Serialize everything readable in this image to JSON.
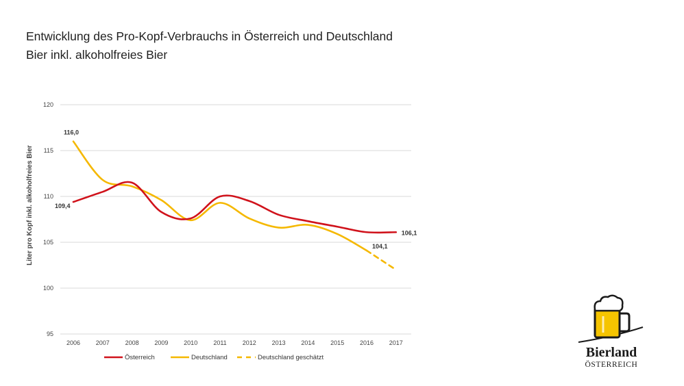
{
  "header": {
    "title": "Entwicklung des Pro-Kopf-Verbrauchs in Österreich und Deutschland",
    "subtitle": "Bier inkl. alkoholfreies Bier"
  },
  "logo": {
    "name": "Bierland",
    "sub": "ÖSTERREICH"
  },
  "colors": {
    "austria": "#d0121b",
    "germany": "#f5b800",
    "grid": "#d9d9d9"
  },
  "chart_data": {
    "type": "line",
    "title": "",
    "xlabel": "",
    "ylabel": "Liter pro Kopf inkl. alkoholfreies Bier",
    "ylim": [
      95,
      120
    ],
    "yticks": [
      95,
      100,
      105,
      110,
      115,
      120
    ],
    "grid": true,
    "legend_position": "bottom",
    "x": [
      "2006",
      "2007",
      "2008",
      "2009",
      "2010",
      "2011",
      "2012",
      "2013",
      "2014",
      "2015",
      "2016",
      "2017"
    ],
    "series": [
      {
        "name": "Österreich",
        "style": "solid",
        "values": [
          109.4,
          110.5,
          111.5,
          108.3,
          107.6,
          110.0,
          109.5,
          108.0,
          107.3,
          106.7,
          106.1,
          106.1
        ]
      },
      {
        "name": "Deutschland",
        "style": "solid",
        "values": [
          116.0,
          111.8,
          111.1,
          109.6,
          107.4,
          109.3,
          107.6,
          106.6,
          106.9,
          105.9,
          104.1,
          null
        ]
      },
      {
        "name": "Deutschland geschätzt",
        "style": "dashed",
        "values": [
          null,
          null,
          null,
          null,
          null,
          null,
          null,
          null,
          null,
          null,
          104.1,
          102.0
        ]
      }
    ],
    "data_labels": [
      {
        "series": 0,
        "index": 0,
        "text": "109,4"
      },
      {
        "series": 0,
        "index": 11,
        "text": "106,1"
      },
      {
        "series": 1,
        "index": 0,
        "text": "116,0"
      },
      {
        "series": 1,
        "index": 10,
        "text": "104,1"
      }
    ]
  }
}
